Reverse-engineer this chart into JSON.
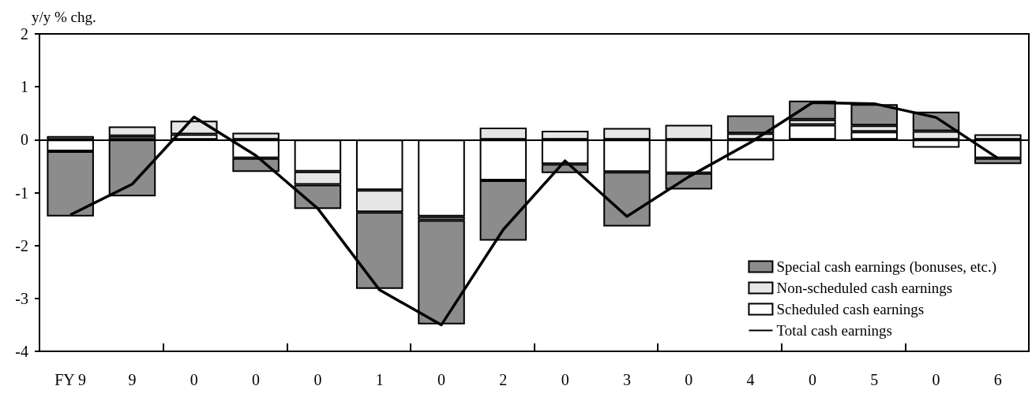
{
  "chart_data": {
    "type": "bar",
    "ylabel": "y/y % chg.",
    "categories": [
      "FY 9",
      "9",
      "0",
      "0",
      "0",
      "1",
      "0",
      "2",
      "0",
      "3",
      "0",
      "4",
      "0",
      "5",
      "0",
      "6"
    ],
    "stacked": true,
    "series": [
      {
        "name": "Scheduled cash earnings",
        "color": "#ffffff",
        "values": [
          -0.22,
          0.07,
          0.1,
          -0.35,
          -0.6,
          -0.95,
          -1.45,
          -0.77,
          -0.46,
          -0.61,
          -0.63,
          -0.39,
          0.28,
          0.15,
          -0.15,
          -0.35
        ]
      },
      {
        "name": "Non-scheduled cash earnings",
        "color": "#e6e6e6",
        "values": [
          0.07,
          0.18,
          0.26,
          0.13,
          -0.25,
          -0.42,
          -0.07,
          0.23,
          0.17,
          0.22,
          0.28,
          0.12,
          0.1,
          0.12,
          0.16,
          0.1
        ]
      },
      {
        "name": "Special cash earnings (bonuses, etc.)",
        "color": "#8c8c8c",
        "values": [
          -1.23,
          -1.07,
          null,
          -0.26,
          -0.46,
          -1.45,
          -1.97,
          -1.14,
          -0.17,
          -1.03,
          -0.31,
          0.34,
          0.36,
          0.4,
          0.37,
          -0.11
        ]
      },
      {
        "name": "Total cash earnings",
        "type": "line",
        "color": "#000000",
        "values": [
          -1.42,
          -0.84,
          0.43,
          -0.3,
          -1.3,
          -2.84,
          -3.5,
          -1.7,
          -0.4,
          -1.45,
          -0.7,
          -0.05,
          0.7,
          0.68,
          0.42,
          -0.35
        ]
      }
    ],
    "ylim": [
      -4,
      2
    ],
    "yticks": [
      -4,
      -3,
      -2,
      -1,
      0,
      1,
      2
    ],
    "ref_lines": [
      {
        "axis": "y",
        "value": 0,
        "color": "#000000"
      }
    ],
    "grid": false,
    "legend": "bottom right",
    "marker": "none",
    "line_style": "solid"
  }
}
